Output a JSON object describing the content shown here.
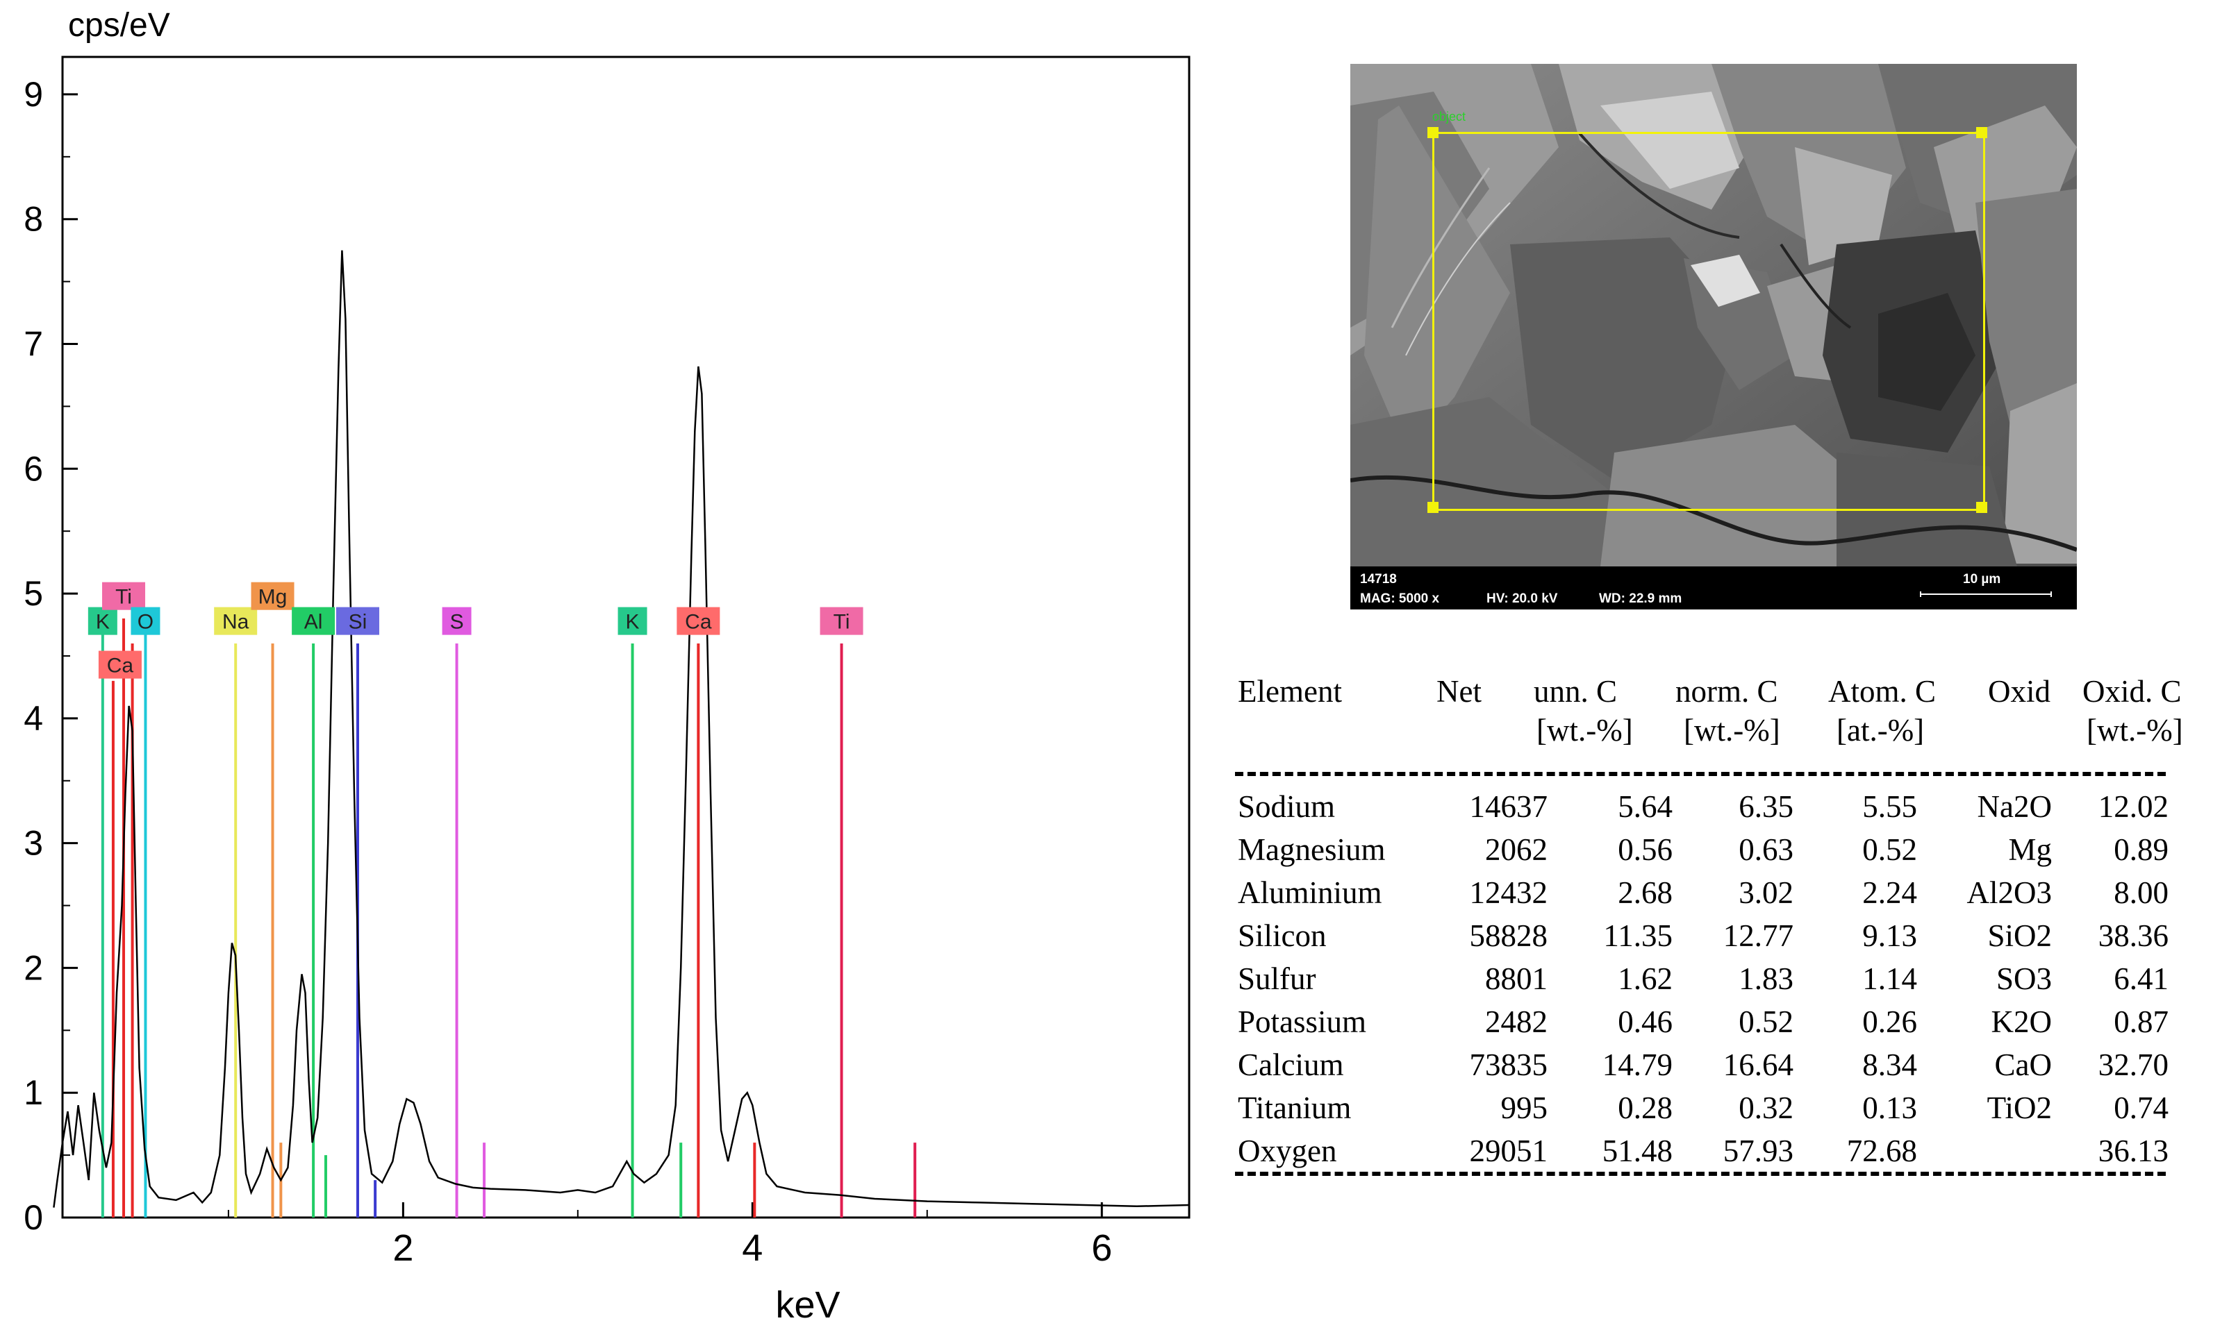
{
  "chart_data": {
    "type": "line",
    "ylabel": "cps/eV",
    "xlabel": "keV",
    "xlim": [
      0,
      6.5
    ],
    "ylim": [
      0,
      9.3
    ],
    "xticks": [
      2,
      4,
      6
    ],
    "yticks": [
      0,
      1,
      2,
      3,
      4,
      5,
      6,
      7,
      8,
      9
    ],
    "spectrum": [
      [
        0.0,
        0.08
      ],
      [
        0.02,
        0.3
      ],
      [
        0.05,
        0.6
      ],
      [
        0.08,
        0.85
      ],
      [
        0.11,
        0.5
      ],
      [
        0.14,
        0.9
      ],
      [
        0.17,
        0.6
      ],
      [
        0.2,
        0.3
      ],
      [
        0.23,
        1.0
      ],
      [
        0.26,
        0.7
      ],
      [
        0.3,
        0.4
      ],
      [
        0.33,
        0.6
      ],
      [
        0.36,
        1.8
      ],
      [
        0.39,
        2.5
      ],
      [
        0.41,
        3.4
      ],
      [
        0.43,
        4.1
      ],
      [
        0.45,
        3.9
      ],
      [
        0.47,
        2.5
      ],
      [
        0.49,
        1.2
      ],
      [
        0.52,
        0.55
      ],
      [
        0.55,
        0.25
      ],
      [
        0.6,
        0.16
      ],
      [
        0.7,
        0.14
      ],
      [
        0.8,
        0.2
      ],
      [
        0.85,
        0.12
      ],
      [
        0.9,
        0.2
      ],
      [
        0.95,
        0.5
      ],
      [
        0.98,
        1.2
      ],
      [
        1.0,
        1.8
      ],
      [
        1.02,
        2.2
      ],
      [
        1.04,
        2.1
      ],
      [
        1.06,
        1.5
      ],
      [
        1.08,
        0.8
      ],
      [
        1.1,
        0.35
      ],
      [
        1.13,
        0.2
      ],
      [
        1.18,
        0.35
      ],
      [
        1.22,
        0.55
      ],
      [
        1.26,
        0.4
      ],
      [
        1.3,
        0.3
      ],
      [
        1.34,
        0.4
      ],
      [
        1.37,
        0.9
      ],
      [
        1.39,
        1.5
      ],
      [
        1.42,
        1.95
      ],
      [
        1.44,
        1.8
      ],
      [
        1.46,
        1.1
      ],
      [
        1.48,
        0.6
      ],
      [
        1.51,
        0.8
      ],
      [
        1.54,
        1.6
      ],
      [
        1.57,
        3.0
      ],
      [
        1.6,
        5.0
      ],
      [
        1.63,
        6.8
      ],
      [
        1.65,
        7.75
      ],
      [
        1.67,
        7.2
      ],
      [
        1.69,
        5.6
      ],
      [
        1.72,
        3.4
      ],
      [
        1.75,
        1.6
      ],
      [
        1.78,
        0.7
      ],
      [
        1.82,
        0.35
      ],
      [
        1.88,
        0.28
      ],
      [
        1.94,
        0.45
      ],
      [
        1.98,
        0.75
      ],
      [
        2.02,
        0.95
      ],
      [
        2.06,
        0.92
      ],
      [
        2.1,
        0.75
      ],
      [
        2.15,
        0.45
      ],
      [
        2.2,
        0.32
      ],
      [
        2.3,
        0.27
      ],
      [
        2.4,
        0.24
      ],
      [
        2.5,
        0.23
      ],
      [
        2.7,
        0.22
      ],
      [
        2.9,
        0.2
      ],
      [
        3.0,
        0.22
      ],
      [
        3.1,
        0.2
      ],
      [
        3.2,
        0.25
      ],
      [
        3.28,
        0.45
      ],
      [
        3.32,
        0.35
      ],
      [
        3.38,
        0.28
      ],
      [
        3.45,
        0.35
      ],
      [
        3.52,
        0.5
      ],
      [
        3.56,
        0.9
      ],
      [
        3.59,
        2.0
      ],
      [
        3.62,
        3.6
      ],
      [
        3.65,
        5.3
      ],
      [
        3.67,
        6.3
      ],
      [
        3.69,
        6.82
      ],
      [
        3.71,
        6.6
      ],
      [
        3.73,
        5.4
      ],
      [
        3.76,
        3.4
      ],
      [
        3.79,
        1.6
      ],
      [
        3.82,
        0.7
      ],
      [
        3.86,
        0.45
      ],
      [
        3.9,
        0.7
      ],
      [
        3.94,
        0.95
      ],
      [
        3.97,
        1.0
      ],
      [
        4.0,
        0.9
      ],
      [
        4.04,
        0.6
      ],
      [
        4.08,
        0.35
      ],
      [
        4.14,
        0.25
      ],
      [
        4.3,
        0.2
      ],
      [
        4.5,
        0.18
      ],
      [
        4.7,
        0.15
      ],
      [
        5.0,
        0.13
      ],
      [
        5.3,
        0.12
      ],
      [
        5.6,
        0.11
      ],
      [
        5.9,
        0.1
      ],
      [
        6.2,
        0.09
      ],
      [
        6.5,
        0.1
      ]
    ],
    "markers": [
      {
        "label": "K",
        "x": 0.28,
        "tier": 1,
        "color": "#26c98b"
      },
      {
        "label": "Ti",
        "x": 0.4,
        "tier": 0,
        "color": "#f06aa6"
      },
      {
        "label": "O",
        "x": 0.525,
        "tier": 1,
        "color": "#1ec8d8"
      },
      {
        "label": "Ca",
        "x": 0.34,
        "tier": 2,
        "color": "#ff6b6b"
      },
      {
        "label": "Na",
        "x": 1.041,
        "tier": 1,
        "color": "#e8e85a"
      },
      {
        "label": "Mg",
        "x": 1.253,
        "tier": 0,
        "color": "#f0944a"
      },
      {
        "label": "Al",
        "x": 1.486,
        "tier": 1,
        "color": "#22cc66"
      },
      {
        "label": "Si",
        "x": 1.74,
        "tier": 1,
        "color": "#6a6ae0"
      },
      {
        "label": "S",
        "x": 2.307,
        "tier": 1,
        "color": "#e05ae0"
      },
      {
        "label": "K",
        "x": 3.313,
        "tier": 1,
        "color": "#26c98b"
      },
      {
        "label": "Ca",
        "x": 3.69,
        "tier": 1,
        "color": "#ff6b6b"
      },
      {
        "label": "Ti",
        "x": 4.51,
        "tier": 1,
        "color": "#f06aa6"
      }
    ],
    "element_lines": [
      {
        "x": 0.28,
        "height": 4.8,
        "color": "#26c98b"
      },
      {
        "x": 0.34,
        "height": 4.3,
        "color": "#e82828"
      },
      {
        "x": 0.4,
        "height": 4.8,
        "color": "#e82828"
      },
      {
        "x": 0.45,
        "height": 4.6,
        "color": "#e82828"
      },
      {
        "x": 0.525,
        "height": 4.8,
        "color": "#1ec8d8"
      },
      {
        "x": 1.041,
        "height": 4.6,
        "color": "#e8e85a"
      },
      {
        "x": 1.253,
        "height": 4.6,
        "color": "#f0944a"
      },
      {
        "x": 1.3,
        "height": 0.6,
        "color": "#f0944a"
      },
      {
        "x": 1.486,
        "height": 4.6,
        "color": "#22cc66"
      },
      {
        "x": 1.557,
        "height": 0.5,
        "color": "#22cc66"
      },
      {
        "x": 1.74,
        "height": 4.6,
        "color": "#3a3ad0"
      },
      {
        "x": 1.84,
        "height": 0.3,
        "color": "#3a3ad0"
      },
      {
        "x": 2.307,
        "height": 4.6,
        "color": "#e05ae0"
      },
      {
        "x": 2.464,
        "height": 0.6,
        "color": "#e05ae0"
      },
      {
        "x": 3.313,
        "height": 4.6,
        "color": "#22cc66"
      },
      {
        "x": 3.59,
        "height": 0.6,
        "color": "#22cc66"
      },
      {
        "x": 3.69,
        "height": 4.6,
        "color": "#e82828"
      },
      {
        "x": 4.012,
        "height": 0.6,
        "color": "#e82828"
      },
      {
        "x": 4.51,
        "height": 4.6,
        "color": "#e01e50"
      },
      {
        "x": 4.93,
        "height": 0.6,
        "color": "#e01e50"
      }
    ]
  },
  "sem": {
    "sample_id": "14718",
    "mag": "MAG: 5000 x",
    "hv": "HV: 20.0 kV",
    "wd": "WD: 22.9 mm",
    "scale_label": "10 µm",
    "roi_label": "object"
  },
  "table": {
    "headers": {
      "element": "Element",
      "net": "Net",
      "unn": "unn. C",
      "unn_unit": "[wt.-%]",
      "norm": "norm. C",
      "norm_unit": "[wt.-%]",
      "atom": "Atom. C",
      "atom_unit": "[at.-%]",
      "oxid": "Oxid",
      "oxidc": "Oxid. C",
      "oxidc_unit": "[wt.-%]"
    },
    "rows": [
      {
        "element": "Sodium",
        "net": "14637",
        "unn": "5.64",
        "norm": "6.35",
        "atom": "5.55",
        "oxid": "Na2O",
        "oxidc": "12.02"
      },
      {
        "element": "Magnesium",
        "net": "2062",
        "unn": "0.56",
        "norm": "0.63",
        "atom": "0.52",
        "oxid": "Mg",
        "oxidc": "0.89"
      },
      {
        "element": "Aluminium",
        "net": "12432",
        "unn": "2.68",
        "norm": "3.02",
        "atom": "2.24",
        "oxid": "Al2O3",
        "oxidc": "8.00"
      },
      {
        "element": "Silicon",
        "net": "58828",
        "unn": "11.35",
        "norm": "12.77",
        "atom": "9.13",
        "oxid": "SiO2",
        "oxidc": "38.36"
      },
      {
        "element": "Sulfur",
        "net": "8801",
        "unn": "1.62",
        "norm": "1.83",
        "atom": "1.14",
        "oxid": "SO3",
        "oxidc": "6.41"
      },
      {
        "element": "Potassium",
        "net": "2482",
        "unn": "0.46",
        "norm": "0.52",
        "atom": "0.26",
        "oxid": "K2O",
        "oxidc": "0.87"
      },
      {
        "element": "Calcium",
        "net": "73835",
        "unn": "14.79",
        "norm": "16.64",
        "atom": "8.34",
        "oxid": "CaO",
        "oxidc": "32.70"
      },
      {
        "element": "Titanium",
        "net": "995",
        "unn": "0.28",
        "norm": "0.32",
        "atom": "0.13",
        "oxid": "TiO2",
        "oxidc": "0.74"
      },
      {
        "element": "Oxygen",
        "net": "29051",
        "unn": "51.48",
        "norm": "57.93",
        "atom": "72.68",
        "oxid": "",
        "oxidc": "36.13"
      }
    ]
  }
}
